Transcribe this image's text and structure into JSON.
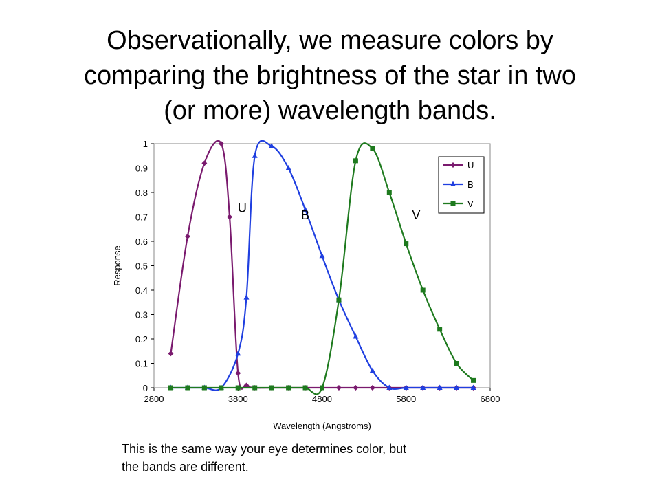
{
  "slide": {
    "title_lines": [
      "Observationally, we measure colors by",
      "comparing the brightness of the star in two",
      "(or more) wavelength bands."
    ],
    "caption_lines": [
      "This is the same way your eye determines color, but",
      "the bands are different."
    ]
  },
  "chart_data": {
    "type": "line",
    "title": "",
    "xlabel": "Wavelength (Angstroms)",
    "ylabel": "Response",
    "xlim": [
      2800,
      6800
    ],
    "ylim": [
      0,
      1
    ],
    "xticks": [
      2800,
      3800,
      4800,
      5800,
      6800
    ],
    "xtick_labels": [
      "2800",
      "3800",
      "4800",
      "5800",
      "6800"
    ],
    "yticks": [
      0,
      0.1,
      0.2,
      0.3,
      0.4,
      0.5,
      0.6,
      0.7,
      0.8,
      0.9,
      1
    ],
    "ytick_labels": [
      "0",
      "0.1",
      "0.2",
      "0.3",
      "0.4",
      "0.5",
      "0.6",
      "0.7",
      "0.8",
      "0.9",
      "1"
    ],
    "grid": false,
    "legend_position": "top-right",
    "series": [
      {
        "name": "U",
        "color": "#7a1a6e",
        "marker": "diamond",
        "x": [
          3000,
          3200,
          3400,
          3600,
          3700,
          3800,
          3900,
          4000,
          4200,
          4400,
          4600,
          4800,
          5000,
          5200,
          5400,
          5600,
          5800,
          6000,
          6200,
          6400,
          6600
        ],
        "y": [
          0.14,
          0.62,
          0.92,
          1.0,
          0.7,
          0.06,
          0.01,
          0,
          0,
          0,
          0,
          0,
          0,
          0,
          0,
          0,
          0,
          0,
          0,
          0,
          0
        ]
      },
      {
        "name": "B",
        "color": "#1f3fe0",
        "marker": "triangle",
        "x": [
          3000,
          3200,
          3400,
          3600,
          3800,
          3900,
          4000,
          4200,
          4400,
          4600,
          4800,
          5000,
          5200,
          5400,
          5600,
          5800,
          6000,
          6200,
          6400,
          6600
        ],
        "y": [
          0,
          0,
          0,
          0,
          0.14,
          0.37,
          0.95,
          0.99,
          0.9,
          0.73,
          0.54,
          0.36,
          0.21,
          0.07,
          0,
          0,
          0,
          0,
          0,
          0
        ]
      },
      {
        "name": "V",
        "color": "#1e7a1e",
        "marker": "square",
        "x": [
          3000,
          3200,
          3400,
          3600,
          3800,
          4000,
          4200,
          4400,
          4600,
          4800,
          5000,
          5200,
          5400,
          5600,
          5800,
          6000,
          6200,
          6400,
          6600
        ],
        "y": [
          0,
          0,
          0,
          0,
          0,
          0,
          0,
          0,
          0,
          0,
          0.36,
          0.93,
          0.98,
          0.8,
          0.59,
          0.4,
          0.24,
          0.1,
          0.03
        ]
      }
    ],
    "annotations": [
      {
        "text": "U",
        "x": 3850,
        "y": 0.72
      },
      {
        "text": "B",
        "x": 4600,
        "y": 0.69
      },
      {
        "text": "V",
        "x": 5920,
        "y": 0.69
      }
    ]
  }
}
